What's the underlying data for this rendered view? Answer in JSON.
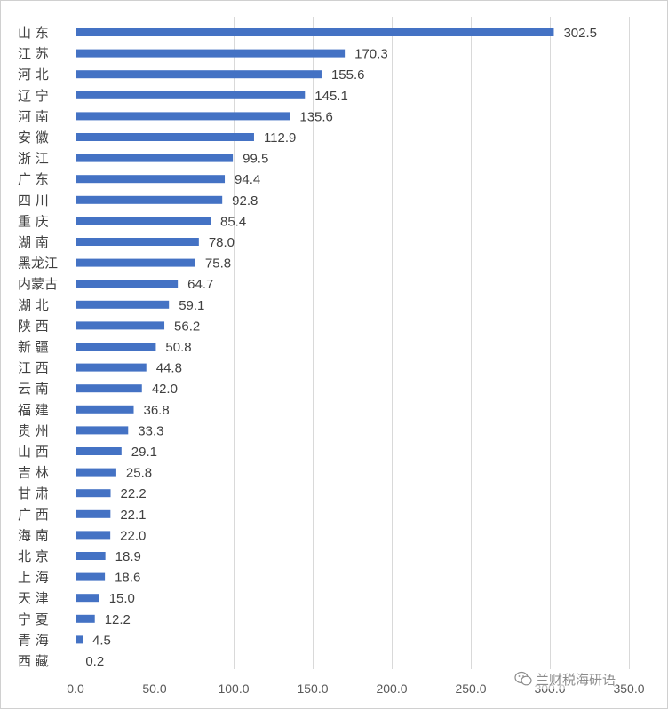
{
  "chart_data": {
    "type": "bar",
    "orientation": "horizontal",
    "categories": [
      "山 东",
      "江 苏",
      "河 北",
      "辽 宁",
      "河 南",
      "安 徽",
      "浙 江",
      "广 东",
      "四 川",
      "重 庆",
      "湖 南",
      "黑龙江",
      "内蒙古",
      "湖 北",
      "陕 西",
      "新 疆",
      "江 西",
      "云 南",
      "福 建",
      "贵 州",
      "山 西",
      "吉 林",
      "甘 肃",
      "广 西",
      "海 南",
      "北 京",
      "上 海",
      "天 津",
      "宁 夏",
      "青 海",
      "西 藏"
    ],
    "values": [
      302.5,
      170.3,
      155.6,
      145.1,
      135.6,
      112.9,
      99.5,
      94.4,
      92.8,
      85.4,
      78.0,
      75.8,
      64.7,
      59.1,
      56.2,
      50.8,
      44.8,
      42.0,
      36.8,
      33.3,
      29.1,
      25.8,
      22.2,
      22.1,
      22.0,
      18.9,
      18.6,
      15.0,
      12.2,
      4.5,
      0.2
    ],
    "value_labels": [
      "302.5",
      "170.3",
      "155.6",
      "145.1",
      "135.6",
      "112.9",
      "99.5",
      "94.4",
      "92.8",
      "85.4",
      "78.0",
      "75.8",
      "64.7",
      "59.1",
      "56.2",
      "50.8",
      "44.8",
      "42.0",
      "36.8",
      "33.3",
      "29.1",
      "25.8",
      "22.2",
      "22.1",
      "22.0",
      "18.9",
      "18.6",
      "15.0",
      "12.2",
      "4.5",
      "0.2"
    ],
    "xlim": [
      0,
      350
    ],
    "xticks": [
      0,
      50,
      100,
      150,
      200,
      250,
      300,
      350
    ],
    "xtick_labels": [
      "0.0",
      "50.0",
      "100.0",
      "150.0",
      "200.0",
      "250.0",
      "300.0",
      "350.0"
    ],
    "bar_color": "#4472c4",
    "grid": true,
    "legend": "none"
  },
  "watermark": {
    "text": "兰财税海研语",
    "icon": "wechat-icon"
  }
}
